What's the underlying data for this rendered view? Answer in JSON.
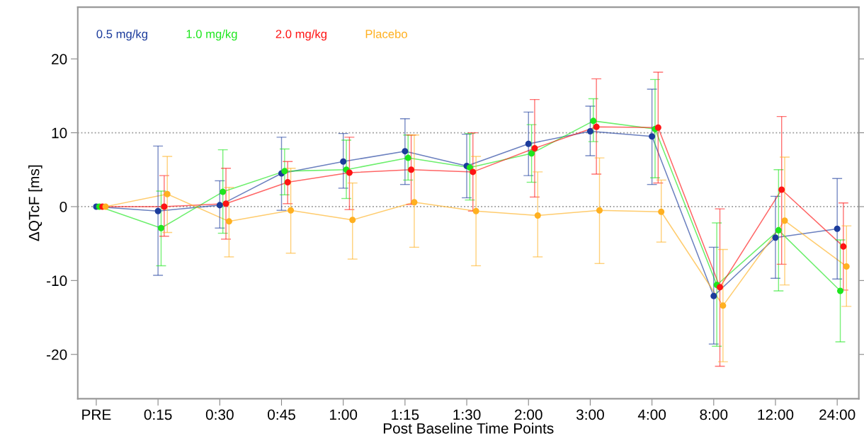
{
  "chart_data": {
    "type": "line",
    "xlabel": "Post Baseline Time Points",
    "ylabel": "ΔQTcF [ms]",
    "categories": [
      "PRE",
      "0:15",
      "0:30",
      "0:45",
      "1:00",
      "1:15",
      "1:30",
      "2:00",
      "3:00",
      "4:00",
      "8:00",
      "12:00",
      "24:00"
    ],
    "series": [
      {
        "name": "0.5 mg/kg",
        "color": "#1c3c9c",
        "values": [
          0,
          -0.6,
          0.2,
          4.5,
          6.1,
          7.5,
          5.5,
          8.5,
          10.2,
          9.5,
          -12.1,
          -4.2,
          -3.0
        ],
        "errors": [
          null,
          [
            -9.3,
            8.2
          ],
          [
            -2.9,
            3.5
          ],
          [
            -0.5,
            9.4
          ],
          [
            2.5,
            9.9
          ],
          [
            3.0,
            11.9
          ],
          [
            1.2,
            9.8
          ],
          [
            4.2,
            12.8
          ],
          [
            6.9,
            13.6
          ],
          [
            3.0,
            15.9
          ],
          [
            -18.6,
            -5.5
          ],
          [
            -9.7,
            1.4
          ],
          [
            -9.8,
            3.8
          ]
        ]
      },
      {
        "name": "1.0 mg/kg",
        "color": "#1ee61e",
        "values": [
          0,
          -2.9,
          2.0,
          4.8,
          5.0,
          6.6,
          5.3,
          7.2,
          11.6,
          10.5,
          -10.6,
          -3.2,
          -11.4
        ],
        "errors": [
          null,
          [
            -8.0,
            2.1
          ],
          [
            -3.6,
            7.7
          ],
          [
            1.6,
            7.8
          ],
          [
            1.1,
            9.0
          ],
          [
            3.6,
            9.7
          ],
          [
            0.9,
            9.9
          ],
          [
            3.3,
            11.1
          ],
          [
            8.8,
            14.6
          ],
          [
            3.9,
            17.2
          ],
          [
            -18.9,
            -2.2
          ],
          [
            -11.4,
            5.0
          ],
          [
            -18.3,
            -4.5
          ]
        ]
      },
      {
        "name": "2.0 mg/kg",
        "color": "#ff1414",
        "values": [
          0,
          0.0,
          0.4,
          3.3,
          4.6,
          5.0,
          4.7,
          7.9,
          10.8,
          10.7,
          -10.9,
          2.3,
          -5.4
        ],
        "errors": [
          null,
          [
            -4.0,
            4.2
          ],
          [
            -4.4,
            5.2
          ],
          [
            0.4,
            6.1
          ],
          [
            -0.4,
            9.4
          ],
          [
            0.3,
            9.7
          ],
          [
            -0.6,
            10.0
          ],
          [
            1.3,
            14.5
          ],
          [
            4.4,
            17.3
          ],
          [
            3.2,
            18.2
          ],
          [
            -21.6,
            -0.3
          ],
          [
            -7.8,
            12.2
          ],
          [
            -11.3,
            0.5
          ]
        ]
      },
      {
        "name": "Placebo",
        "color": "#ffb020",
        "values": [
          0,
          1.7,
          -2.0,
          -0.5,
          -1.8,
          0.6,
          -0.6,
          -1.2,
          -0.5,
          -0.7,
          -13.4,
          -1.9,
          -8.1
        ],
        "errors": [
          null,
          [
            -3.5,
            6.8
          ],
          [
            -6.8,
            2.6
          ],
          [
            -6.3,
            5.2
          ],
          [
            -7.1,
            3.2
          ],
          [
            -5.5,
            9.7
          ],
          [
            -8.0,
            6.8
          ],
          [
            -6.8,
            4.7
          ],
          [
            -7.7,
            6.6
          ],
          [
            -4.8,
            3.6
          ],
          [
            -21.0,
            -5.8
          ],
          [
            -10.6,
            6.7
          ],
          [
            -13.5,
            -2.6
          ]
        ]
      }
    ],
    "ylim": [
      -26,
      27
    ],
    "yticks": [
      -20,
      -10,
      0,
      10,
      20
    ],
    "ref_lines": [
      {
        "axis": "y",
        "value": 0,
        "color": "#999999",
        "line_style": "dotted"
      },
      {
        "axis": "y",
        "value": 10,
        "color": "#999999",
        "line_style": "dotted"
      }
    ],
    "legend": "top left",
    "marker": "circle",
    "line_style": "solid",
    "grid": false
  }
}
